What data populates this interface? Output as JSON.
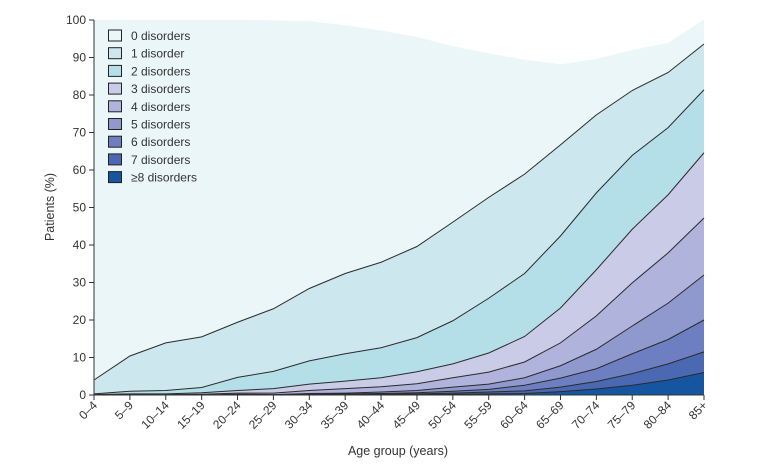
{
  "chart_data": {
    "type": "area",
    "stacked": true,
    "xlabel": "Age group (years)",
    "ylabel": "Patients (%)",
    "ylim": [
      0,
      100
    ],
    "yticks": [
      0,
      10,
      20,
      30,
      40,
      50,
      60,
      70,
      80,
      90,
      100
    ],
    "grid": false,
    "legend": "top-left",
    "categories": [
      "0–4",
      "5–9",
      "10–14",
      "15–19",
      "20–24",
      "25–29",
      "30–34",
      "35–39",
      "40–44",
      "45–49",
      "50–54",
      "55–59",
      "60–64",
      "65–69",
      "70–74",
      "75–79",
      "80–84",
      "85+"
    ],
    "series": [
      {
        "name": "0 disorders",
        "color": "#eaf6f7",
        "values": [
          96.0,
          89.6,
          86.1,
          84.5,
          80.6,
          76.9,
          71.3,
          66.2,
          61.8,
          55.9,
          46.9,
          38.4,
          30.5,
          21.5,
          14.9,
          10.8,
          7.9,
          6.5
        ]
      },
      {
        "name": "1 disorder",
        "color": "#cde7ee",
        "values": [
          3.7,
          9.4,
          12.7,
          13.5,
          14.7,
          16.7,
          19.3,
          21.4,
          22.8,
          24.3,
          26.3,
          26.9,
          26.5,
          24.3,
          20.8,
          17.3,
          14.7,
          12.2
        ]
      },
      {
        "name": "2 disorders",
        "color": "#b4dfe9",
        "values": [
          0.2,
          0.7,
          0.9,
          1.4,
          3.5,
          4.6,
          6.2,
          7.3,
          8.0,
          9.1,
          11.5,
          14.6,
          16.8,
          19.2,
          20.5,
          19.7,
          17.9,
          16.8
        ]
      },
      {
        "name": "3 disorders",
        "color": "#c9cbe7",
        "values": [
          0.1,
          0.2,
          0.2,
          0.4,
          0.7,
          1.2,
          1.7,
          2.0,
          2.4,
          3.2,
          3.7,
          5.1,
          6.8,
          9.3,
          12.3,
          14.3,
          15.5,
          17.4
        ]
      },
      {
        "name": "4 disorders",
        "color": "#b0b4dc",
        "values": [
          0.0,
          0.1,
          0.1,
          0.2,
          0.3,
          0.4,
          0.8,
          1.2,
          1.4,
          1.8,
          2.5,
          3.2,
          4.2,
          6.1,
          8.9,
          11.5,
          13.4,
          15.2
        ]
      },
      {
        "name": "5 disorders",
        "color": "#8f99cd",
        "values": [
          0.0,
          0.0,
          0.0,
          0.0,
          0.1,
          0.1,
          0.2,
          0.2,
          0.4,
          0.6,
          1.1,
          1.4,
          2.0,
          3.3,
          5.2,
          7.4,
          9.7,
          12.0
        ]
      },
      {
        "name": "6 disorders",
        "color": "#6d7fc0",
        "values": [
          0.0,
          0.0,
          0.0,
          0.0,
          0.1,
          0.0,
          0.1,
          0.2,
          0.2,
          0.3,
          0.5,
          0.7,
          1.5,
          2.4,
          3.4,
          5.3,
          6.5,
          8.5
        ]
      },
      {
        "name": "7 disorders",
        "color": "#4a69b2",
        "values": [
          0.0,
          0.0,
          0.0,
          0.0,
          0.0,
          0.0,
          0.1,
          0.1,
          0.1,
          0.2,
          0.3,
          0.5,
          0.7,
          1.2,
          2.0,
          3.1,
          4.3,
          5.5
        ]
      },
      {
        "name": "≥8 disorders",
        "color": "#1656a0",
        "values": [
          0.0,
          0.0,
          0.0,
          0.0,
          0.0,
          0.0,
          0.0,
          0.0,
          0.1,
          0.1,
          0.2,
          0.3,
          0.4,
          0.9,
          1.6,
          2.6,
          4.0,
          6.0
        ]
      }
    ]
  }
}
